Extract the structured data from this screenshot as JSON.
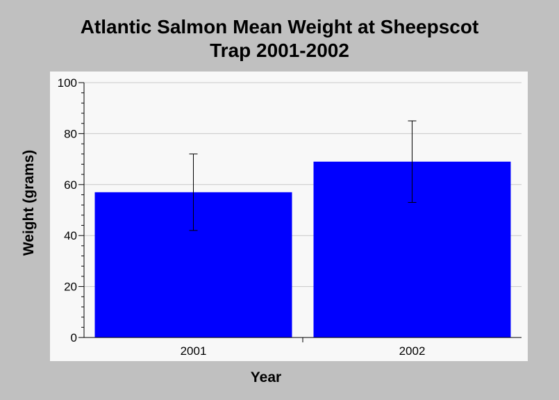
{
  "chart_data": {
    "type": "bar",
    "title_lines": [
      "Atlantic Salmon Mean Weight at Sheepscot",
      "Trap 2001-2002"
    ],
    "xlabel": "Year",
    "ylabel": "Weight (grams)",
    "categories": [
      "2001",
      "2002"
    ],
    "values": [
      57,
      69
    ],
    "error_low": [
      42,
      53
    ],
    "error_high": [
      72,
      85
    ],
    "ylim": [
      0,
      100
    ],
    "yticks": [
      0,
      20,
      40,
      60,
      80,
      100
    ],
    "grid": true,
    "bar_color": "#0000ff"
  }
}
